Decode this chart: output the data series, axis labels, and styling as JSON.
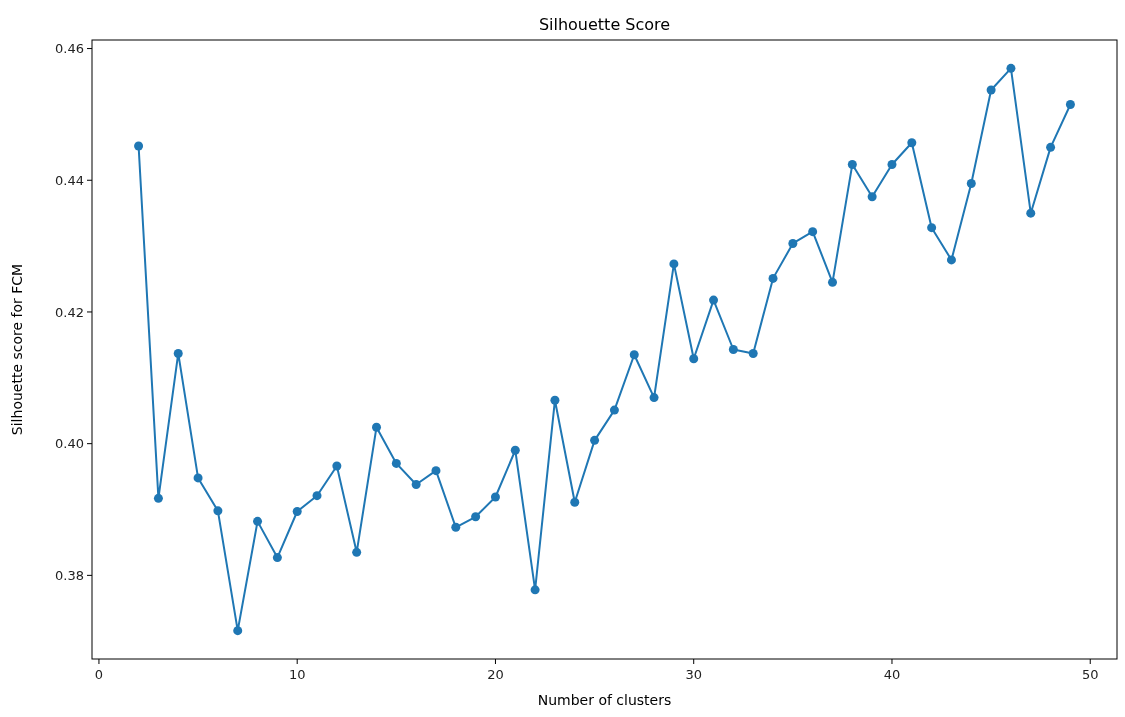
{
  "chart_data": {
    "type": "line",
    "title": "Silhouette Score",
    "xlabel": "Number of clusters",
    "ylabel": "Silhouette score for FCM",
    "x": [
      2,
      3,
      4,
      5,
      6,
      7,
      8,
      9,
      10,
      11,
      12,
      13,
      14,
      15,
      16,
      17,
      18,
      19,
      20,
      21,
      22,
      23,
      24,
      25,
      26,
      27,
      28,
      29,
      30,
      31,
      32,
      33,
      34,
      35,
      36,
      37,
      38,
      39,
      40,
      41,
      42,
      43,
      44,
      45,
      46,
      47,
      48,
      49
    ],
    "series": [
      {
        "color": "#1f77b4",
        "values": [
          0.4452,
          0.3917,
          0.4137,
          0.3948,
          0.3898,
          0.3716,
          0.3882,
          0.3827,
          0.3897,
          0.3921,
          0.3966,
          0.3835,
          0.4025,
          0.397,
          0.3938,
          0.3959,
          0.3873,
          0.3889,
          0.3919,
          0.399,
          0.3778,
          0.4066,
          0.3911,
          0.4005,
          0.4051,
          0.4135,
          0.407,
          0.4273,
          0.4129,
          0.4218,
          0.4143,
          0.4137,
          0.4251,
          0.4304,
          0.4322,
          0.4245,
          0.4424,
          0.4375,
          0.4424,
          0.4457,
          0.4328,
          0.4279,
          0.4395,
          0.4537,
          0.457,
          0.435,
          0.445,
          0.4515
        ]
      }
    ],
    "xlim": [
      -0.35,
      51.35
    ],
    "xticks": [
      0,
      10,
      20,
      30,
      40,
      50
    ],
    "ylim": [
      0.3673,
      0.4613
    ],
    "yticks": [
      {
        "value": 0.38,
        "label": "0.38"
      },
      {
        "value": 0.4,
        "label": "0.40"
      },
      {
        "value": 0.42,
        "label": "0.42"
      },
      {
        "value": 0.44,
        "label": "0.44"
      },
      {
        "value": 0.46,
        "label": "0.46"
      }
    ],
    "marker": "circle",
    "line_style": "solid"
  }
}
